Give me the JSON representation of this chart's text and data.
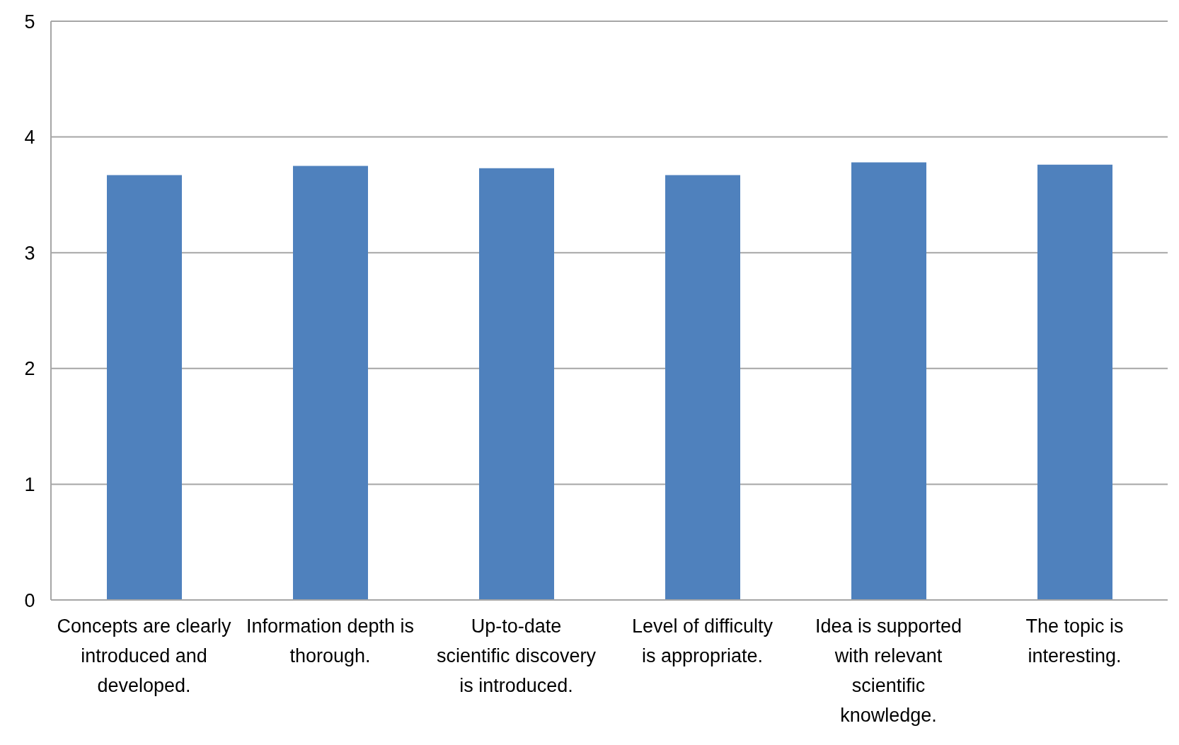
{
  "chart_data": {
    "type": "bar",
    "categories": [
      "Concepts are clearly introduced and developed.",
      "Information depth is thorough.",
      "Up-to-date scientific discovery is introduced.",
      "Level of difficulty is appropriate.",
      "Idea is supported with relevant scientific knowledge.",
      "The topic is interesting."
    ],
    "values": [
      3.67,
      3.75,
      3.73,
      3.67,
      3.78,
      3.76
    ],
    "color": "#4f81bd",
    "ylim": [
      0,
      5
    ],
    "yticks": [
      0,
      1,
      2,
      3,
      4,
      5
    ],
    "grid": "y",
    "legend": false
  }
}
